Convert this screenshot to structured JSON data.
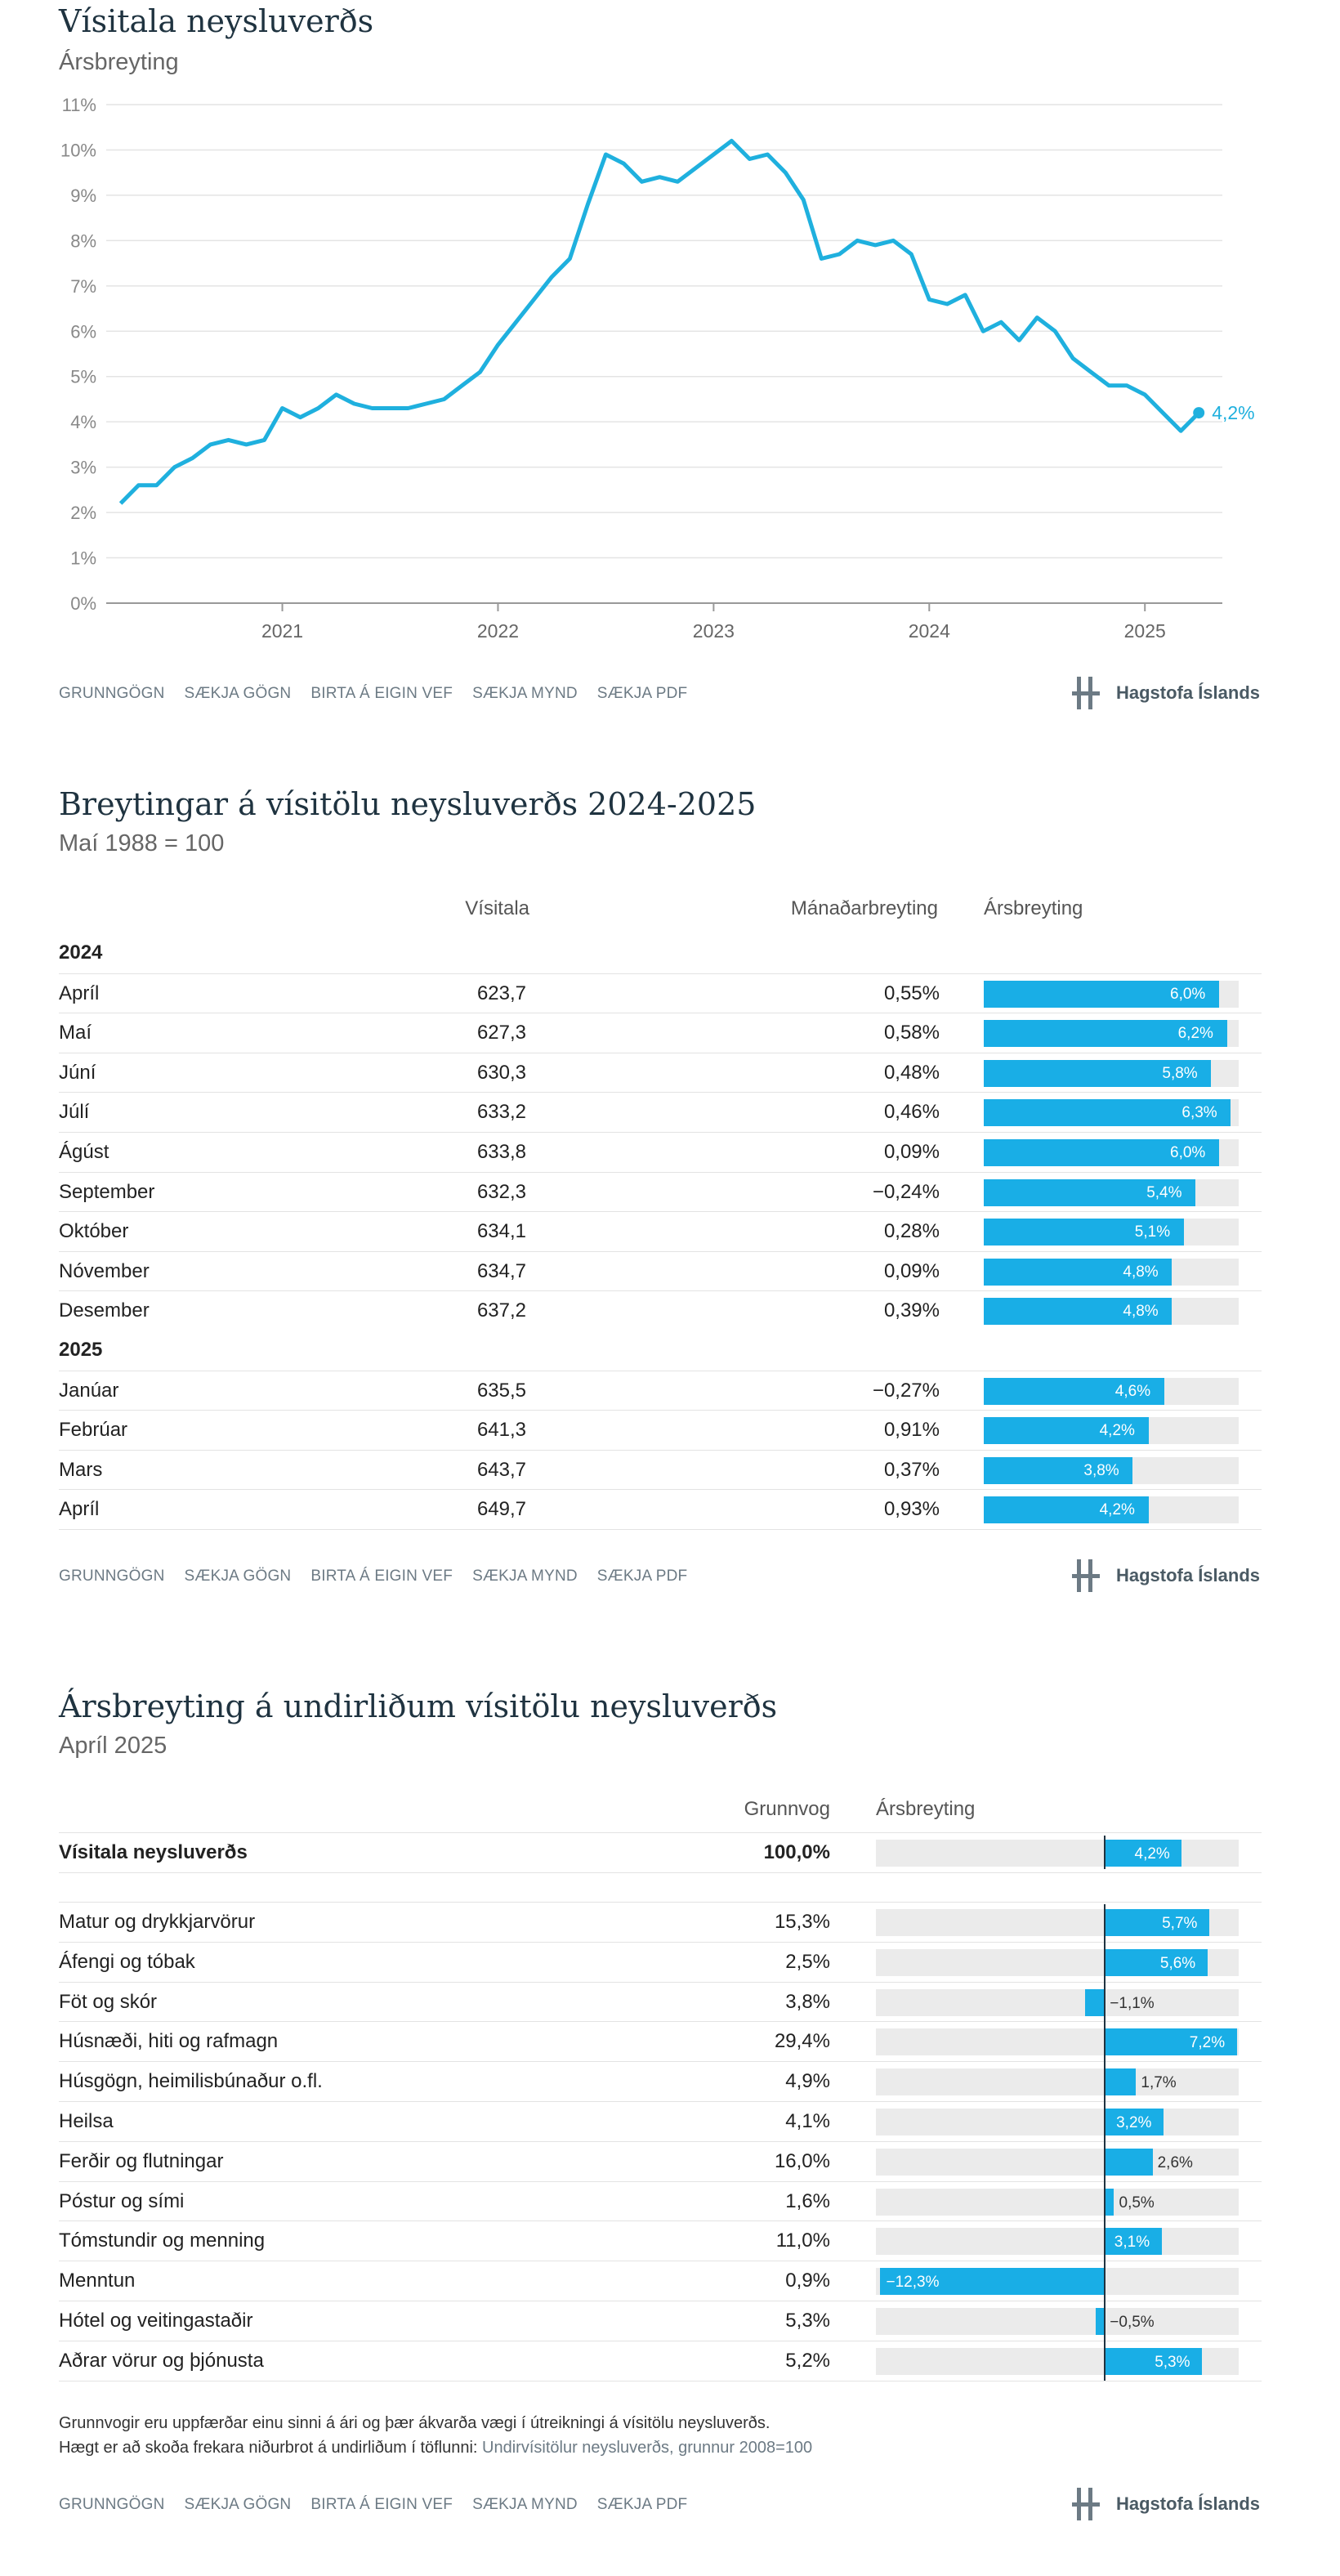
{
  "chart1": {
    "title": "Vísitala neysluverðs",
    "subtitle": "Ársbreyting",
    "last_label": "4,2%",
    "y_ticks": [
      "0%",
      "1%",
      "2%",
      "3%",
      "4%",
      "5%",
      "6%",
      "7%",
      "8%",
      "9%",
      "10%",
      "11%"
    ],
    "x_ticks": [
      "2021",
      "2022",
      "2023",
      "2024",
      "2025"
    ]
  },
  "chart_data": [
    {
      "type": "line",
      "title": "Vísitala neysluverðs",
      "subtitle": "Ársbreyting",
      "x": [
        "2020-04",
        "2020-05",
        "2020-06",
        "2020-07",
        "2020-08",
        "2020-09",
        "2020-10",
        "2020-11",
        "2020-12",
        "2021-01",
        "2021-02",
        "2021-03",
        "2021-04",
        "2021-05",
        "2021-06",
        "2021-07",
        "2021-08",
        "2021-09",
        "2021-10",
        "2021-11",
        "2021-12",
        "2022-01",
        "2022-02",
        "2022-03",
        "2022-04",
        "2022-05",
        "2022-06",
        "2022-07",
        "2022-08",
        "2022-09",
        "2022-10",
        "2022-11",
        "2022-12",
        "2023-01",
        "2023-02",
        "2023-03",
        "2023-04",
        "2023-05",
        "2023-06",
        "2023-07",
        "2023-08",
        "2023-09",
        "2023-10",
        "2023-11",
        "2023-12",
        "2024-01",
        "2024-02",
        "2024-03",
        "2024-04",
        "2024-05",
        "2024-06",
        "2024-07",
        "2024-08",
        "2024-09",
        "2024-10",
        "2024-11",
        "2024-12",
        "2025-01",
        "2025-02",
        "2025-03",
        "2025-04"
      ],
      "values": [
        2.2,
        2.6,
        2.6,
        3.0,
        3.2,
        3.5,
        3.6,
        3.5,
        3.6,
        4.3,
        4.1,
        4.3,
        4.6,
        4.4,
        4.3,
        4.3,
        4.3,
        4.4,
        4.5,
        4.8,
        5.1,
        5.7,
        6.2,
        6.7,
        7.2,
        7.6,
        8.8,
        9.9,
        9.7,
        9.3,
        9.4,
        9.3,
        9.6,
        9.9,
        10.2,
        9.8,
        9.9,
        9.5,
        8.9,
        7.6,
        7.7,
        8.0,
        7.9,
        8.0,
        7.7,
        6.7,
        6.6,
        6.8,
        6.0,
        6.2,
        5.8,
        6.3,
        6.0,
        5.4,
        5.1,
        4.8,
        4.8,
        4.6,
        4.2,
        3.8,
        4.2
      ],
      "xlabel": "",
      "ylabel": "",
      "ylim": [
        0,
        11
      ],
      "grid": true
    },
    {
      "type": "table",
      "title": "Breytingar á vísitölu neysluverðs 2024-2025",
      "subtitle": "Maí 1988 = 100",
      "columns": [
        "Vísitala",
        "Mánaðarbreyting",
        "Ársbreyting"
      ],
      "groups": [
        {
          "year": "2024",
          "rows": [
            {
              "month": "Apríl",
              "index": "623,7",
              "mom": "0,55%",
              "yoy": 6.0,
              "yoy_label": "6,0%"
            },
            {
              "month": "Maí",
              "index": "627,3",
              "mom": "0,58%",
              "yoy": 6.2,
              "yoy_label": "6,2%"
            },
            {
              "month": "Júní",
              "index": "630,3",
              "mom": "0,48%",
              "yoy": 5.8,
              "yoy_label": "5,8%"
            },
            {
              "month": "Júlí",
              "index": "633,2",
              "mom": "0,46%",
              "yoy": 6.3,
              "yoy_label": "6,3%"
            },
            {
              "month": "Ágúst",
              "index": "633,8",
              "mom": "0,09%",
              "yoy": 6.0,
              "yoy_label": "6,0%"
            },
            {
              "month": "September",
              "index": "632,3",
              "mom": "−0,24%",
              "yoy": 5.4,
              "yoy_label": "5,4%"
            },
            {
              "month": "Október",
              "index": "634,1",
              "mom": "0,28%",
              "yoy": 5.1,
              "yoy_label": "5,1%"
            },
            {
              "month": "Nóvember",
              "index": "634,7",
              "mom": "0,09%",
              "yoy": 4.8,
              "yoy_label": "4,8%"
            },
            {
              "month": "Desember",
              "index": "637,2",
              "mom": "0,39%",
              "yoy": 4.8,
              "yoy_label": "4,8%"
            }
          ]
        },
        {
          "year": "2025",
          "rows": [
            {
              "month": "Janúar",
              "index": "635,5",
              "mom": "−0,27%",
              "yoy": 4.6,
              "yoy_label": "4,6%"
            },
            {
              "month": "Febrúar",
              "index": "641,3",
              "mom": "0,91%",
              "yoy": 4.2,
              "yoy_label": "4,2%"
            },
            {
              "month": "Mars",
              "index": "643,7",
              "mom": "0,37%",
              "yoy": 3.8,
              "yoy_label": "3,8%"
            },
            {
              "month": "Apríl",
              "index": "649,7",
              "mom": "0,93%",
              "yoy": 4.2,
              "yoy_label": "4,2%"
            }
          ]
        }
      ],
      "yoy_max": 6.5
    },
    {
      "type": "bar",
      "title": "Ársbreyting á undirliðum vísitölu neysluverðs",
      "subtitle": "Apríl 2025",
      "columns": [
        "Grunnvog",
        "Ársbreyting"
      ],
      "total": {
        "name": "Vísitala neysluverðs",
        "weight": "100,0%",
        "value": 4.2,
        "label": "4,2%"
      },
      "categories": [
        "Matur og drykkjarvörur",
        "Áfengi og tóbak",
        "Föt og skór",
        "Húsnæði, hiti og rafmagn",
        "Húsgögn, heimilisbúnaður o.fl.",
        "Heilsa",
        "Ferðir og flutningar",
        "Póstur og sími",
        "Tómstundir og menning",
        "Menntun",
        "Hótel og veitingastaðir",
        "Aðrar vörur og þjónusta"
      ],
      "weights": [
        "15,3%",
        "2,5%",
        "3,8%",
        "29,4%",
        "4,9%",
        "4,1%",
        "16,0%",
        "1,6%",
        "11,0%",
        "0,9%",
        "5,3%",
        "5,2%"
      ],
      "values": [
        5.7,
        5.6,
        -1.1,
        7.2,
        1.7,
        3.2,
        2.6,
        0.5,
        3.1,
        -12.3,
        -0.5,
        5.3
      ],
      "labels": [
        "5,7%",
        "5,6%",
        "−1,1%",
        "7,2%",
        "1,7%",
        "3,2%",
        "2,6%",
        "0,5%",
        "3,1%",
        "−12,3%",
        "−0,5%",
        "5,3%"
      ],
      "xlim": [
        -12.5,
        7.3
      ]
    }
  ],
  "chart2": {
    "title": "Breytingar á vísitölu neysluverðs 2024-2025",
    "subtitle": "Maí 1988 = 100",
    "col_index": "Vísitala",
    "col_mom": "Mánaðarbreyting",
    "col_yoy": "Ársbreyting"
  },
  "chart3": {
    "title": "Ársbreyting á undirliðum vísitölu neysluverðs",
    "subtitle": "Apríl 2025",
    "col_weight": "Grunnvog",
    "col_yoy": "Ársbreyting",
    "note_line1": "Grunnvogir eru uppfærðar einu sinni á ári og þær ákvarða vægi í útreikningi á vísitölu neysluverðs.",
    "note_line2_prefix": "Hægt er að skoða frekara niðurbrot á undirliðum í töflunni: ",
    "note_line2_link": "Undirvísitölur neysluverðs, grunnur 2008=100"
  },
  "footer": {
    "links": [
      "GRUNNGÖGN",
      "SÆKJA GÖGN",
      "BIRTA Á EIGIN VEF",
      "SÆKJA MYND",
      "SÆKJA PDF"
    ],
    "brand": "Hagstofa Íslands"
  },
  "colors": {
    "accent": "#19aee6",
    "line": "#1fb0de",
    "title": "#1f3340",
    "bar_bg": "#ebebeb"
  }
}
